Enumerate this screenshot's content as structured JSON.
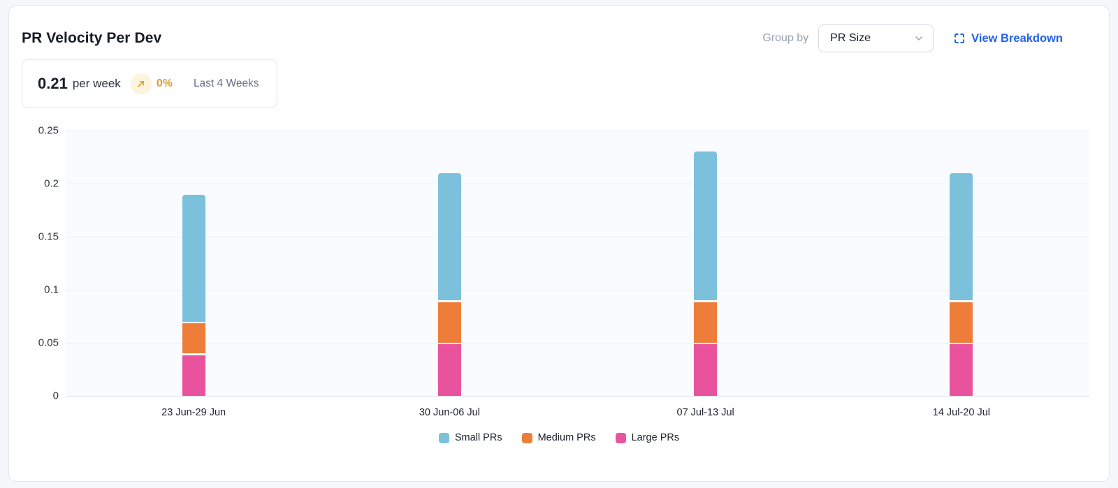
{
  "header": {
    "title": "PR Velocity Per Dev",
    "group_by_label": "Group by",
    "group_by_value": "PR Size",
    "view_breakdown_label": "View Breakdown"
  },
  "stat": {
    "value": "0.21",
    "unit": "per week",
    "trend_value": "0%",
    "period": "Last 4 Weeks"
  },
  "colors": {
    "link_blue": "#2361e8",
    "trend_amber": "#dc9f2e",
    "trend_badge_bg": "#fcf4dd",
    "small_prs": "#7cc1dc",
    "medium_prs": "#ee7d39",
    "large_prs": "#e9539d"
  },
  "chart_data": {
    "type": "bar",
    "stacked": true,
    "title": "PR Velocity Per Dev",
    "xlabel": "",
    "ylabel": "",
    "categories": [
      "23 Jun-29 Jun",
      "30 Jun-06 Jul",
      "07 Jul-13 Jul",
      "14 Jul-20 Jul"
    ],
    "series": [
      {
        "name": "Small PRs",
        "color": "#7cc1dc",
        "values": [
          0.12,
          0.12,
          0.14,
          0.12
        ]
      },
      {
        "name": "Medium PRs",
        "color": "#ee7d39",
        "values": [
          0.03,
          0.04,
          0.04,
          0.04
        ]
      },
      {
        "name": "Large PRs",
        "color": "#e9539d",
        "values": [
          0.04,
          0.05,
          0.05,
          0.05
        ]
      }
    ],
    "stack_order_bottom_to_top": [
      "Large PRs",
      "Medium PRs",
      "Small PRs"
    ],
    "totals": [
      0.19,
      0.21,
      0.23,
      0.21
    ],
    "ylim": [
      0,
      0.25
    ],
    "yticks": [
      0,
      0.05,
      0.1,
      0.15,
      0.2,
      0.25
    ],
    "ytick_labels": [
      "0",
      "0.05",
      "0.1",
      "0.15",
      "0.2",
      "0.25"
    ],
    "grid": true,
    "legend_position": "bottom"
  }
}
